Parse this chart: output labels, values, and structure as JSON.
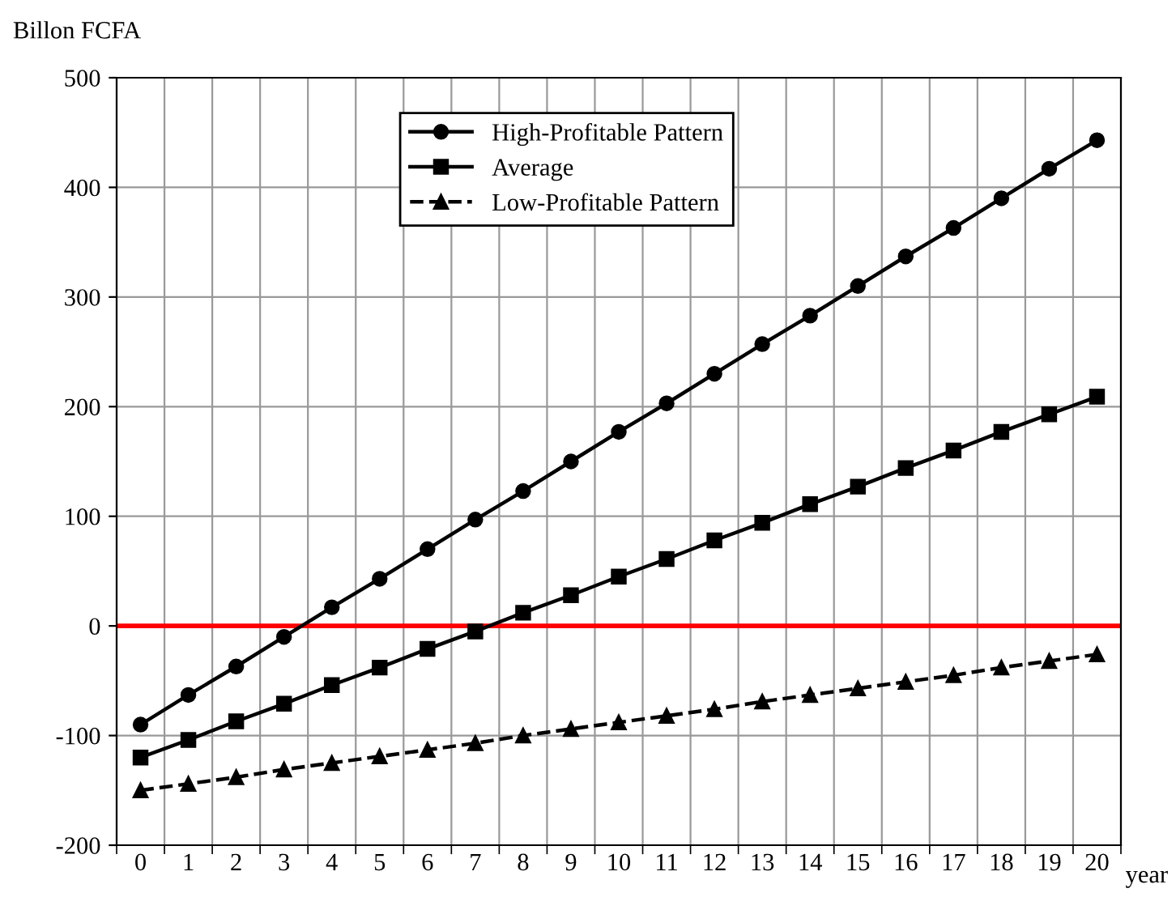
{
  "chart_data": {
    "type": "line",
    "ylabel": "Billon FCFA",
    "xlabel": "year",
    "categories": [
      "0",
      "1",
      "2",
      "3",
      "4",
      "5",
      "6",
      "7",
      "8",
      "9",
      "10",
      "11",
      "12",
      "13",
      "14",
      "15",
      "16",
      "17",
      "18",
      "19",
      "20"
    ],
    "series": [
      {
        "name": "High-Profitable Pattern",
        "color": "#000000",
        "marker": "circle",
        "line_style": "solid",
        "values": [
          -90,
          -63,
          -37,
          -10,
          17,
          43,
          70,
          97,
          123,
          150,
          177,
          203,
          230,
          257,
          283,
          310,
          337,
          363,
          390,
          417,
          443
        ]
      },
      {
        "name": "Average",
        "color": "#000000",
        "marker": "square",
        "line_style": "solid",
        "values": [
          -120,
          -104,
          -87,
          -71,
          -54,
          -38,
          -21,
          -5,
          12,
          28,
          45,
          61,
          78,
          94,
          111,
          127,
          144,
          160,
          177,
          193,
          209
        ]
      },
      {
        "name": "Low-Profitable Pattern",
        "color": "#000000",
        "marker": "triangle",
        "line_style": "dashed",
        "values": [
          -150,
          -144,
          -138,
          -131,
          -125,
          -119,
          -113,
          -107,
          -100,
          -94,
          -88,
          -82,
          -76,
          -69,
          -63,
          -57,
          -51,
          -45,
          -38,
          -32,
          -26
        ]
      }
    ],
    "ylim": [
      -200,
      500
    ],
    "yticks": [
      -200,
      -100,
      0,
      100,
      200,
      300,
      400,
      500
    ],
    "ref_lines": [
      {
        "axis": "y",
        "value": 0,
        "color": "#ff0000"
      }
    ],
    "grid": true,
    "legend": "top left"
  }
}
